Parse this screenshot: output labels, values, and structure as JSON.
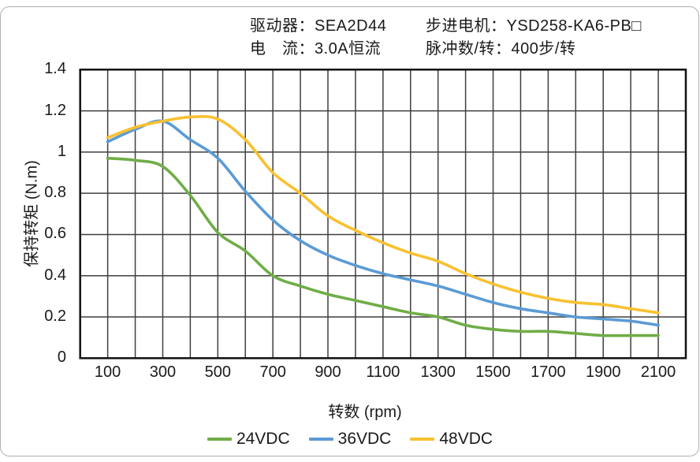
{
  "header": {
    "driver": "驱动器：SEA2D44",
    "current": "电　流：3.0A恒流",
    "motor": "步进电机：YSD258-KA6-PB□",
    "pulses": "脉冲数/转：400步/转"
  },
  "chart_data": {
    "type": "line",
    "title": "",
    "xlabel": "转数 (rpm)",
    "ylabel": "保持转矩 (N.m)",
    "xlim": [
      0,
      2200
    ],
    "ylim": [
      0,
      1.4
    ],
    "grid": {
      "on": true,
      "x_step": 100,
      "y_step": 0.2,
      "color": "#3f3f3f",
      "border_color": "#111111"
    },
    "legend_position": "bottom",
    "x_ticks": [
      100,
      300,
      500,
      700,
      900,
      1100,
      1300,
      1500,
      1700,
      1900,
      2100
    ],
    "y_ticks": [
      0,
      0.2,
      0.4,
      0.6,
      0.8,
      1,
      1.2,
      1.4
    ],
    "y_tick_labels": [
      "0",
      "0.2",
      "0.4",
      "0.6",
      "0.8",
      "1",
      "1.2",
      "1.4"
    ],
    "x": [
      100,
      200,
      300,
      400,
      500,
      600,
      700,
      800,
      900,
      1000,
      1100,
      1200,
      1300,
      1400,
      1500,
      1600,
      1700,
      1800,
      1900,
      2000,
      2100
    ],
    "series": [
      {
        "name": "24VDC",
        "color": "#70AD47",
        "values": [
          0.97,
          0.96,
          0.93,
          0.79,
          0.61,
          0.52,
          0.4,
          0.35,
          0.31,
          0.28,
          0.25,
          0.22,
          0.2,
          0.16,
          0.14,
          0.13,
          0.13,
          0.12,
          0.11,
          0.11,
          0.11
        ]
      },
      {
        "name": "36VDC",
        "color": "#5B9BD5",
        "values": [
          1.05,
          1.11,
          1.15,
          1.06,
          0.97,
          0.81,
          0.67,
          0.57,
          0.5,
          0.45,
          0.41,
          0.38,
          0.35,
          0.31,
          0.27,
          0.24,
          0.22,
          0.2,
          0.19,
          0.18,
          0.16
        ]
      },
      {
        "name": "48VDC",
        "color": "#F9C130",
        "values": [
          1.07,
          1.12,
          1.15,
          1.17,
          1.16,
          1.06,
          0.9,
          0.8,
          0.69,
          0.62,
          0.56,
          0.51,
          0.47,
          0.41,
          0.36,
          0.32,
          0.29,
          0.27,
          0.26,
          0.24,
          0.22
        ]
      }
    ]
  }
}
